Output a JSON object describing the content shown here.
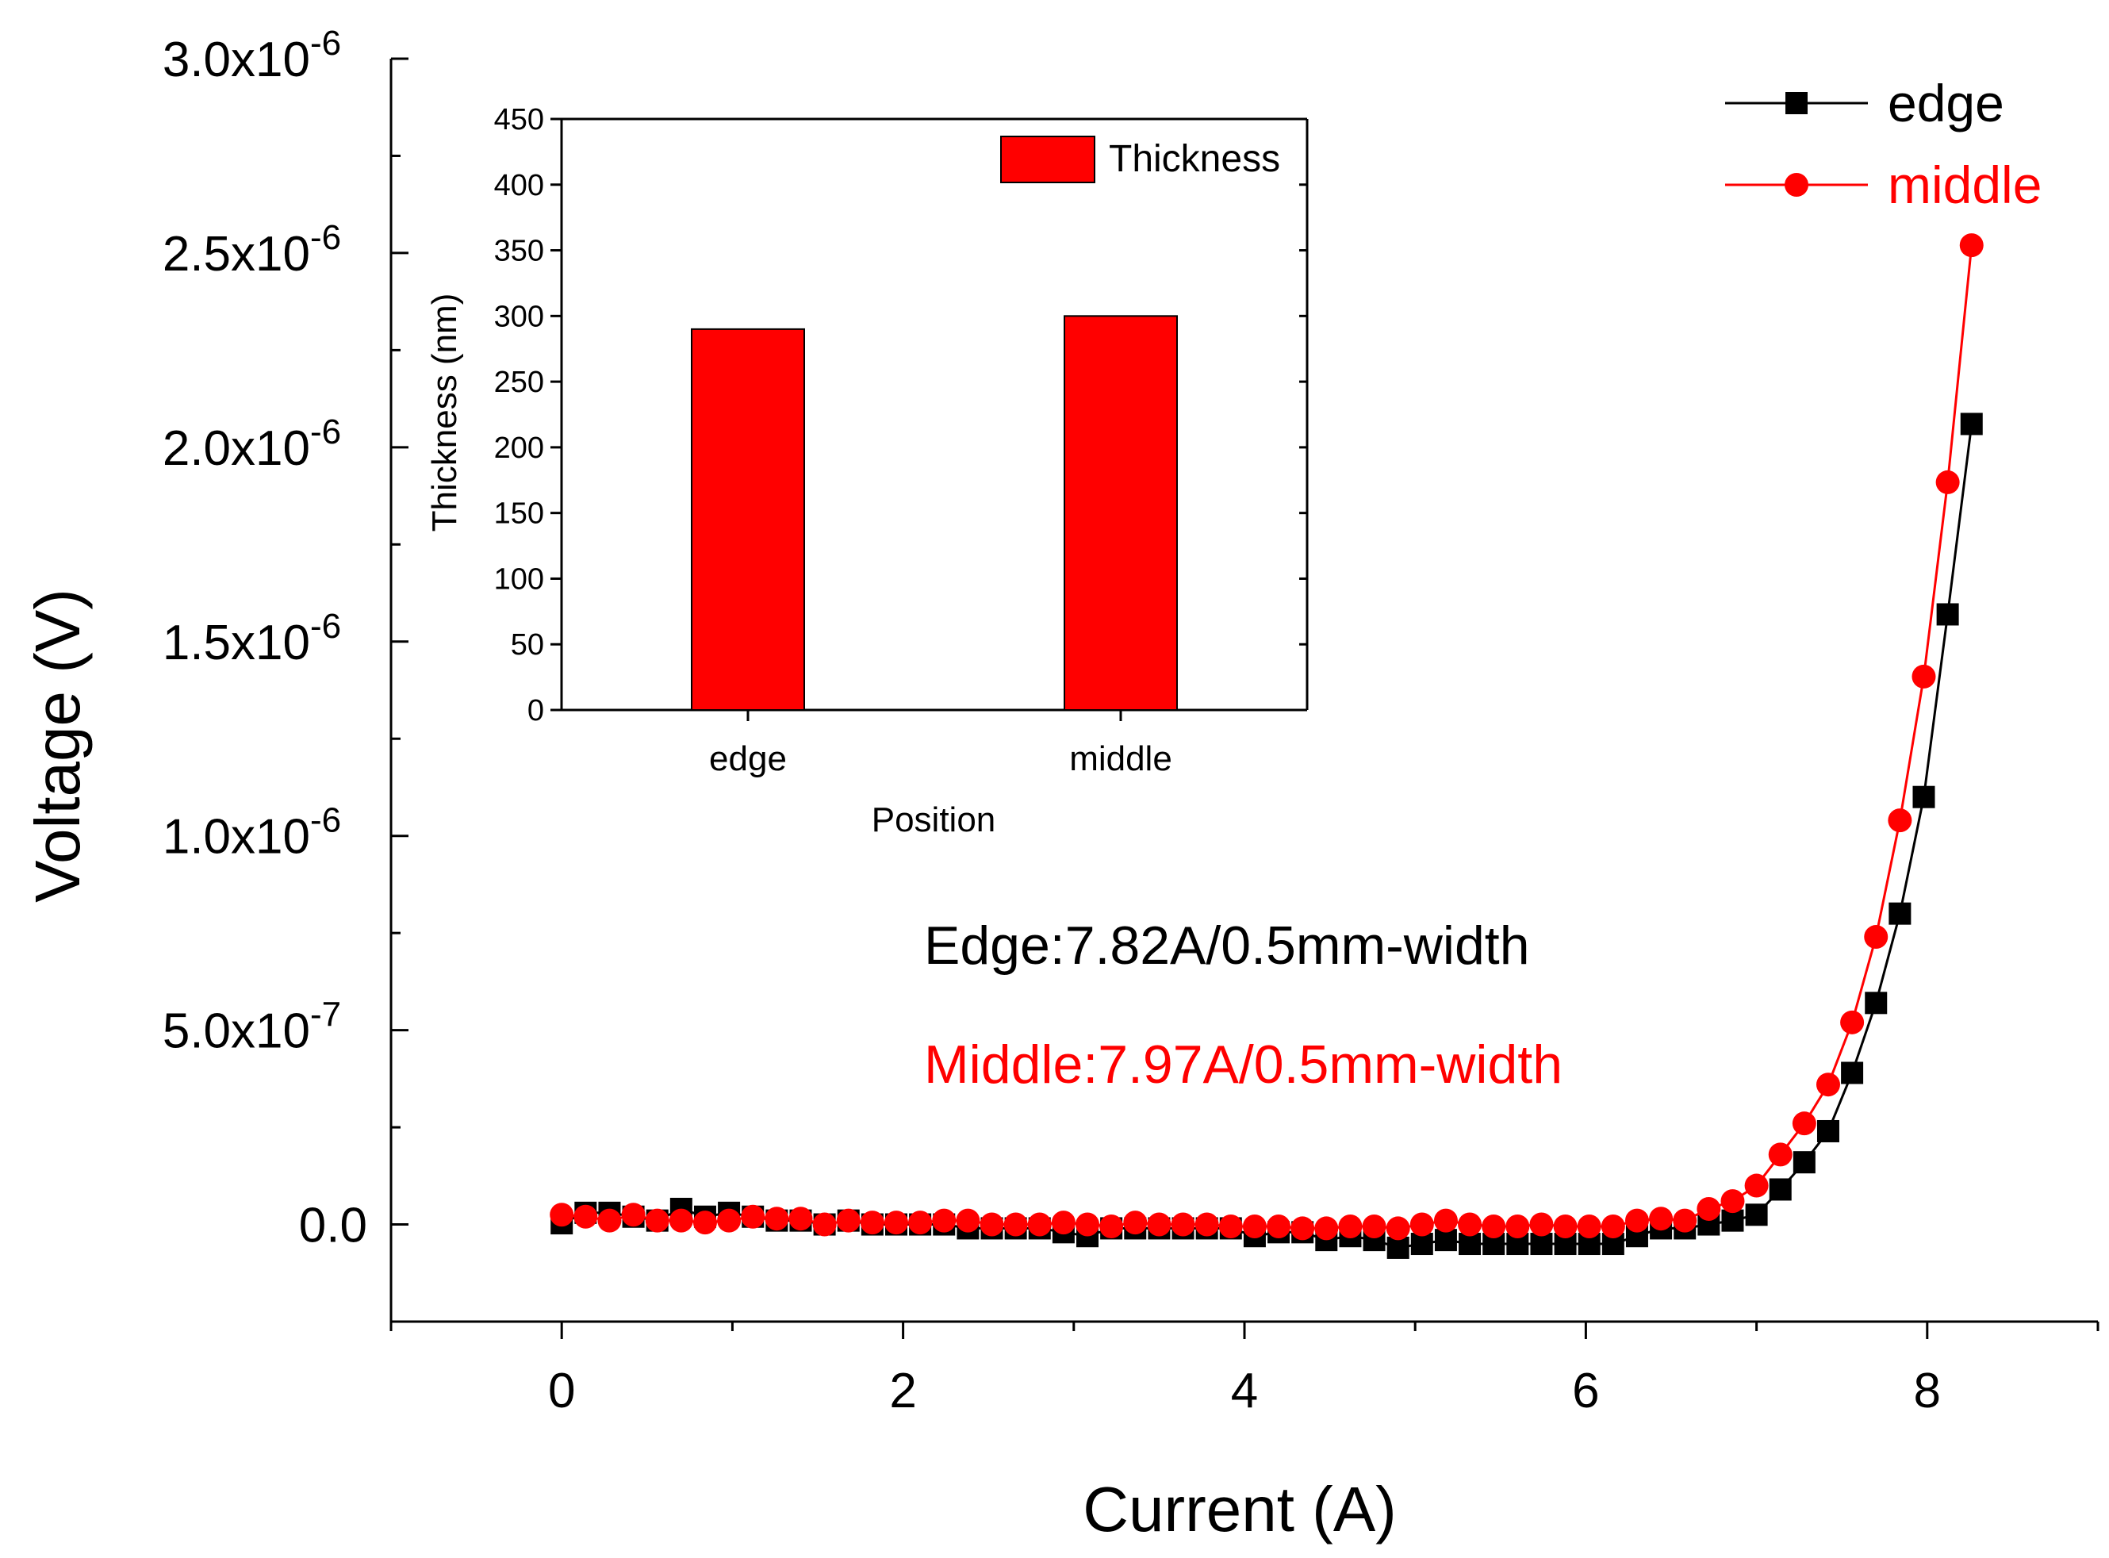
{
  "chart_data": [
    {
      "type": "scatter",
      "xlabel": "Current (A)",
      "ylabel": "Voltage (V)",
      "xlim": [
        -1,
        9
      ],
      "ylim": [
        -2.5e-07,
        3e-06
      ],
      "x_ticks": [
        "0",
        "2",
        "4",
        "6",
        "8"
      ],
      "x_tick_values": [
        0,
        2,
        4,
        6,
        8
      ],
      "y_ticks": [
        {
          "value": 3e-06,
          "mantissa": "3.0x10",
          "exp": "-6"
        },
        {
          "value": 2.5e-06,
          "mantissa": "2.5x10",
          "exp": "-6"
        },
        {
          "value": 2e-06,
          "mantissa": "2.0x10",
          "exp": "-6"
        },
        {
          "value": 1.5e-06,
          "mantissa": "1.5x10",
          "exp": "-6"
        },
        {
          "value": 1e-06,
          "mantissa": "1.0x10",
          "exp": "-6"
        },
        {
          "value": 5e-07,
          "mantissa": "5.0x10",
          "exp": "-7"
        },
        {
          "value": 0.0,
          "mantissa": "0.0",
          "exp": ""
        }
      ],
      "legend_position": "top-right",
      "series": [
        {
          "name": "edge",
          "color": "#000000",
          "marker": "square",
          "x": [
            0,
            0.14,
            0.28,
            0.42,
            0.56,
            0.7,
            0.84,
            0.98,
            1.12,
            1.26,
            1.4,
            1.54,
            1.68,
            1.82,
            1.96,
            2.1,
            2.24,
            2.38,
            2.52,
            2.66,
            2.8,
            2.94,
            3.08,
            3.22,
            3.36,
            3.5,
            3.64,
            3.78,
            3.92,
            4.06,
            4.2,
            4.34,
            4.48,
            4.62,
            4.76,
            4.9,
            5.04,
            5.18,
            5.32,
            5.46,
            5.6,
            5.74,
            5.88,
            6.02,
            6.16,
            6.3,
            6.44,
            6.58,
            6.72,
            6.86,
            7.0,
            7.14,
            7.28,
            7.42,
            7.56,
            7.7,
            7.84,
            7.98,
            8.12,
            8.26
          ],
          "y": [
            3e-09,
            3e-08,
            3e-08,
            2e-08,
            1e-08,
            4e-08,
            2e-08,
            3e-08,
            2e-08,
            1e-08,
            1e-08,
            0.0,
            1e-08,
            0.0,
            0.0,
            0.0,
            0.0,
            -1e-08,
            -1e-08,
            -1e-08,
            -1e-08,
            -2e-08,
            -3e-08,
            -1e-08,
            -1e-08,
            -1e-08,
            -1e-08,
            -1e-08,
            -1e-08,
            -3e-08,
            -2e-08,
            -2e-08,
            -4e-08,
            -3e-08,
            -4e-08,
            -6e-08,
            -5e-08,
            -4e-08,
            -5e-08,
            -5e-08,
            -5e-08,
            -5e-08,
            -5e-08,
            -5e-08,
            -5e-08,
            -3e-08,
            -1e-08,
            -1e-08,
            0.0,
            1e-08,
            2.5e-08,
            9e-08,
            1.6e-07,
            2.4e-07,
            3.9e-07,
            5.7e-07,
            8e-07,
            1.1e-06,
            1.57e-06,
            2.06e-06
          ]
        },
        {
          "name": "middle",
          "color": "#ff0000",
          "marker": "circle",
          "x": [
            0,
            0.14,
            0.28,
            0.42,
            0.56,
            0.7,
            0.84,
            0.98,
            1.12,
            1.26,
            1.4,
            1.54,
            1.68,
            1.82,
            1.96,
            2.1,
            2.24,
            2.38,
            2.52,
            2.66,
            2.8,
            2.94,
            3.08,
            3.22,
            3.36,
            3.5,
            3.64,
            3.78,
            3.92,
            4.06,
            4.2,
            4.34,
            4.48,
            4.62,
            4.76,
            4.9,
            5.04,
            5.18,
            5.32,
            5.46,
            5.6,
            5.74,
            5.88,
            6.02,
            6.16,
            6.3,
            6.44,
            6.58,
            6.72,
            6.86,
            7.0,
            7.14,
            7.28,
            7.42,
            7.56,
            7.7,
            7.84,
            7.98,
            8.12,
            8.26
          ],
          "y": [
            2.5e-08,
            2e-08,
            1e-08,
            2.5e-08,
            1e-08,
            1e-08,
            5e-09,
            1e-08,
            2e-08,
            1.5e-08,
            1.5e-08,
            0.0,
            1e-08,
            5e-09,
            5e-09,
            5e-09,
            1e-08,
            1e-08,
            0.0,
            0.0,
            0.0,
            5e-09,
            0.0,
            -5e-09,
            5e-09,
            0.0,
            0.0,
            0.0,
            -5e-09,
            -5e-09,
            -5e-09,
            -1e-08,
            -1e-08,
            -5e-09,
            -5e-09,
            -1e-08,
            0.0,
            1e-08,
            0.0,
            -5e-09,
            -5e-09,
            0.0,
            -5e-09,
            -5e-09,
            -5e-09,
            1e-08,
            1.5e-08,
            1e-08,
            4e-08,
            6e-08,
            1e-07,
            1.8e-07,
            2.6e-07,
            3.6e-07,
            5.2e-07,
            7.4e-07,
            1.04e-06,
            1.41e-06,
            1.91e-06,
            2.52e-06
          ]
        }
      ],
      "annotations": [
        {
          "text": "Edge:7.82A/0.5mm-width",
          "color": "#000000"
        },
        {
          "text": "Middle:7.97A/0.5mm-width",
          "color": "#ff0000"
        }
      ]
    },
    {
      "type": "bar",
      "title": "",
      "xlabel": "Position",
      "ylabel": "Thickness (nm)",
      "categories": [
        "edge",
        "middle"
      ],
      "values": [
        290,
        300
      ],
      "ylim": [
        0,
        450
      ],
      "y_ticks": [
        "0",
        "50",
        "100",
        "150",
        "200",
        "250",
        "300",
        "350",
        "400",
        "450"
      ],
      "y_tick_values": [
        0,
        50,
        100,
        150,
        200,
        250,
        300,
        350,
        400,
        450
      ],
      "bar_color": "#ff0000",
      "legend": "Thickness",
      "legend_position": "top-right"
    }
  ]
}
